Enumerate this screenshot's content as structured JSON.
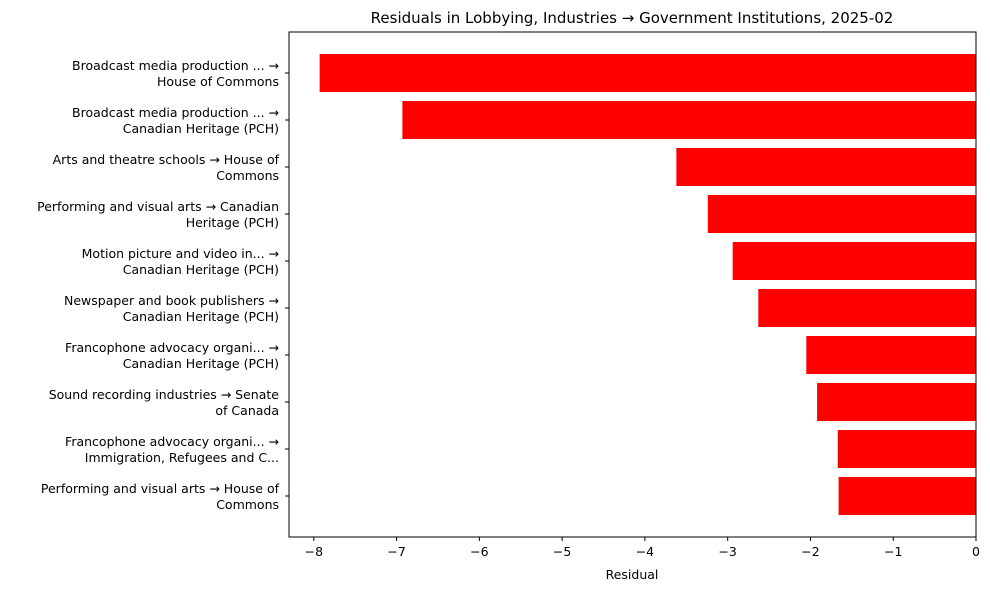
{
  "chart_data": {
    "type": "bar",
    "orientation": "horizontal",
    "title": "Residuals in Lobbying, Industries → Government Institutions, 2025-02",
    "xlabel": "Residual",
    "ylabel": "",
    "xlim": [
      -8.3,
      0
    ],
    "xticks": [
      -8,
      -7,
      -6,
      -5,
      -4,
      -3,
      -2,
      -1,
      0
    ],
    "xtick_labels": [
      "−8",
      "−7",
      "−6",
      "−5",
      "−4",
      "−3",
      "−2",
      "−1",
      "0"
    ],
    "bar_color": "#ff0000",
    "grid": false,
    "categories": [
      [
        "Broadcast media production ... →",
        "House of Commons"
      ],
      [
        "Broadcast media production ... →",
        "Canadian Heritage (PCH)"
      ],
      [
        "Arts and theatre schools → House of",
        "Commons"
      ],
      [
        "Performing and visual arts → Canadian",
        "Heritage (PCH)"
      ],
      [
        "Motion picture and video in... →",
        "Canadian Heritage (PCH)"
      ],
      [
        "Newspaper and book publishers →",
        "Canadian Heritage (PCH)"
      ],
      [
        "Francophone advocacy organi... →",
        "Canadian Heritage (PCH)"
      ],
      [
        "Sound recording industries → Senate",
        "of Canada"
      ],
      [
        "Francophone advocacy organi... →",
        "Immigration, Refugees and C..."
      ],
      [
        "Performing and visual arts → House of",
        "Commons"
      ]
    ],
    "values": [
      -7.93,
      -6.93,
      -3.62,
      -3.24,
      -2.94,
      -2.63,
      -2.05,
      -1.92,
      -1.67,
      -1.66
    ]
  }
}
